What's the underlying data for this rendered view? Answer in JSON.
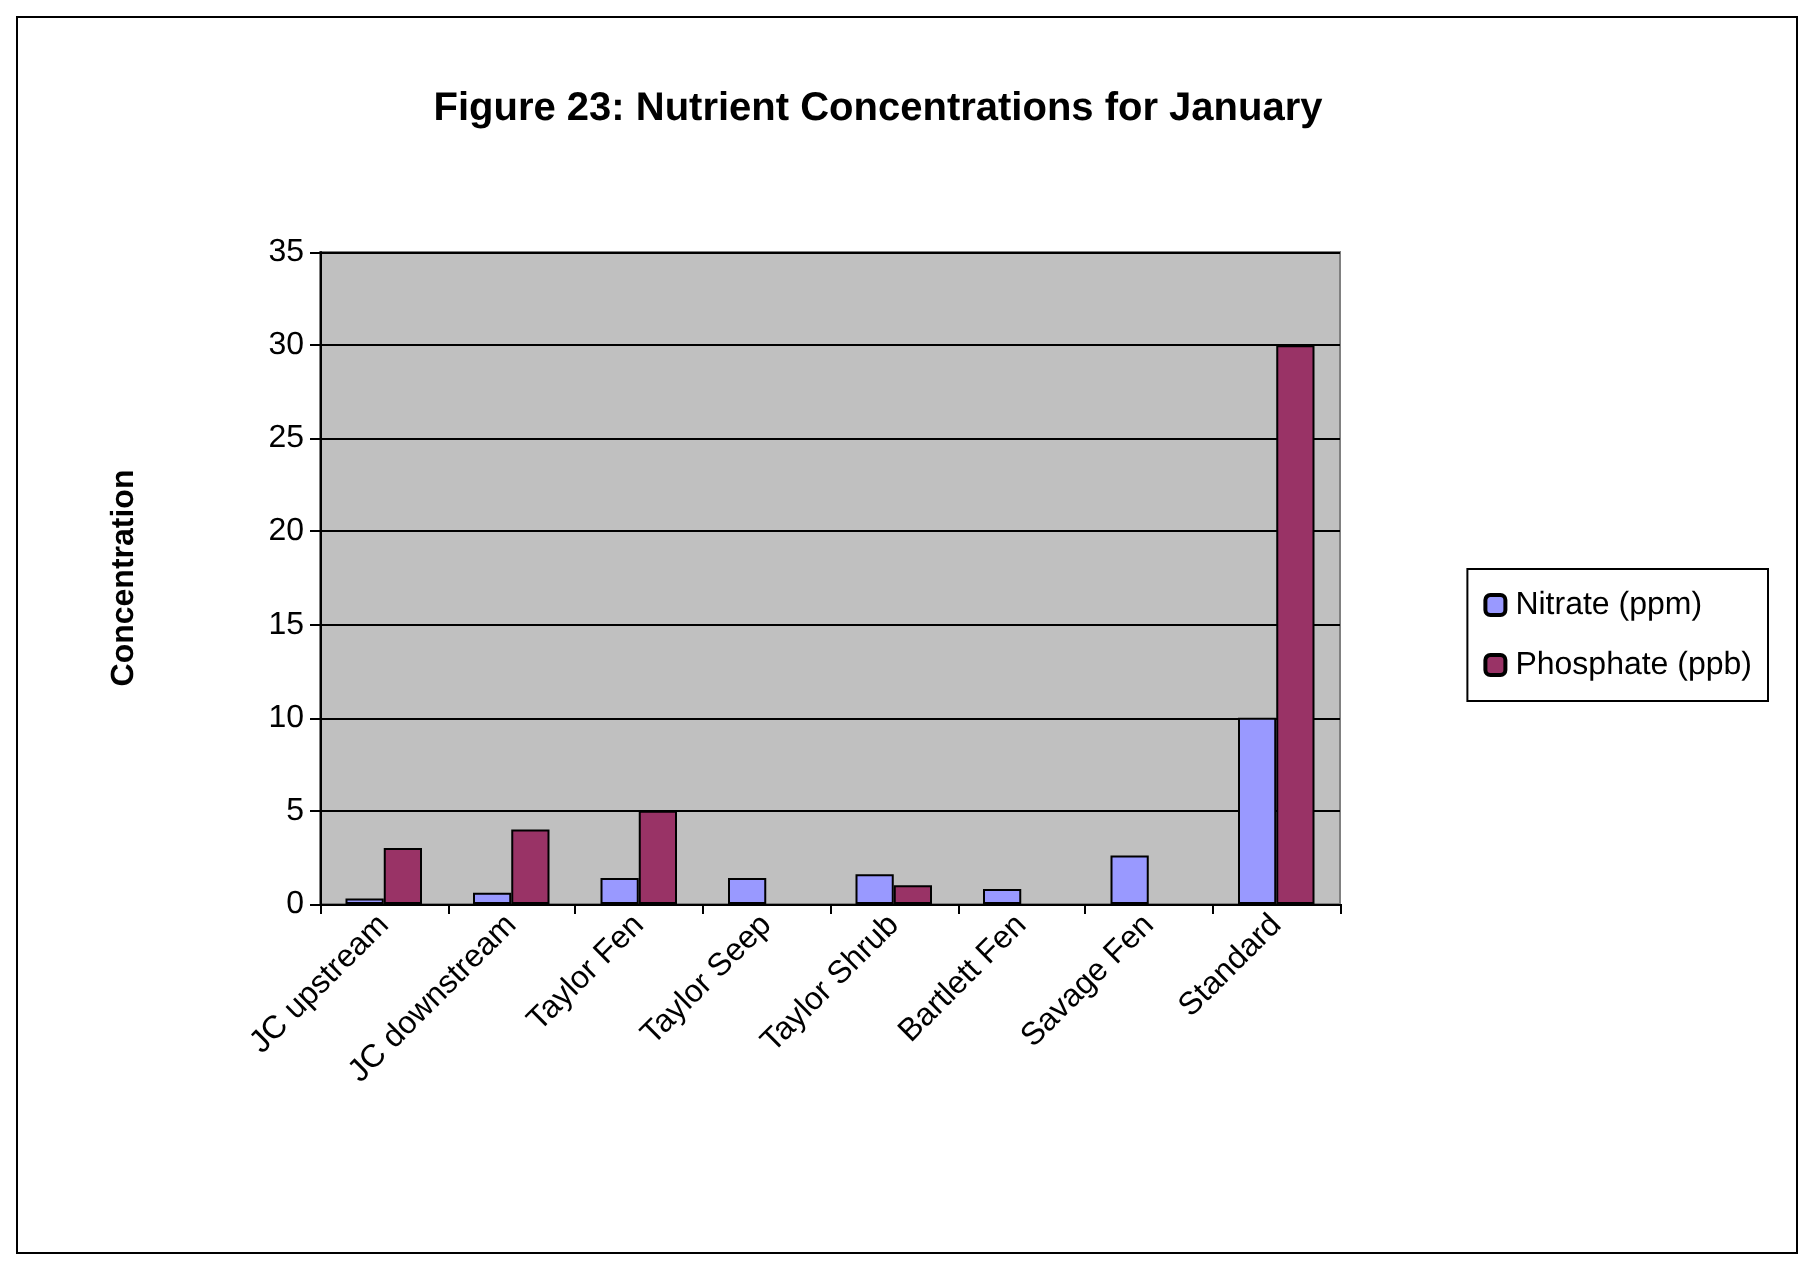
{
  "chart_data": {
    "type": "bar",
    "title": "Figure 23: Nutrient Concentrations for January",
    "ylabel": "Concentration",
    "categories": [
      "JC upstream",
      "JC downstream",
      "Taylor Fen",
      "Taylor Seep",
      "Taylor Shrub",
      "Bartlett Fen",
      "Savage Fen",
      "Standard"
    ],
    "series": [
      {
        "name": "Nitrate (ppm)",
        "color": "#9999ff",
        "values": [
          0.3,
          0.6,
          1.4,
          1.4,
          1.6,
          0.8,
          2.6,
          10
        ]
      },
      {
        "name": "Phosphate (ppb)",
        "color": "#993366",
        "values": [
          3,
          4,
          5,
          null,
          1,
          null,
          null,
          30
        ]
      }
    ],
    "ylim": [
      0,
      35
    ],
    "yticks": [
      0,
      5,
      10,
      15,
      20,
      25,
      30,
      35
    ],
    "grid": "y",
    "legend": "right"
  }
}
